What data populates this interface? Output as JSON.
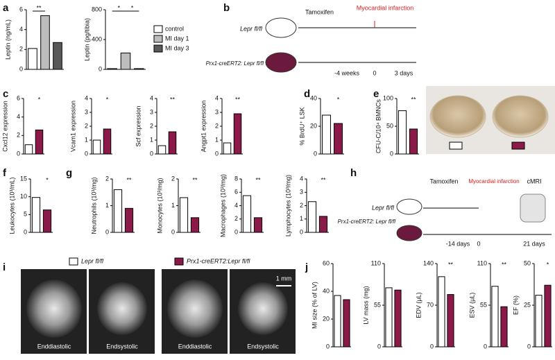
{
  "panel_letters": [
    "a",
    "b",
    "c",
    "d",
    "e",
    "f",
    "g",
    "h",
    "i",
    "j"
  ],
  "chart_data": [
    {
      "type": "bar",
      "ylabel": "Leptin (ng/mL)",
      "ylim": [
        0,
        6
      ],
      "yticks": [
        0,
        2,
        4,
        6
      ],
      "series": [
        {
          "color": "#ffffff",
          "values": [
            2.1
          ]
        },
        {
          "color": "#bdbdbd",
          "values": [
            5.4
          ]
        },
        {
          "color": "#595959",
          "values": [
            2.7
          ]
        }
      ],
      "annotations": [
        "**"
      ]
    },
    {
      "type": "bar",
      "ylabel": "Leptin (pg/tibia)",
      "ylim": [
        0,
        800
      ],
      "yticks": [
        0,
        400,
        800
      ],
      "series": [
        {
          "name": "control",
          "color": "#ffffff",
          "values": [
            10
          ]
        },
        {
          "name": "MI day 1",
          "color": "#bdbdbd",
          "values": [
            220
          ]
        },
        {
          "name": "MI day 3",
          "color": "#595959",
          "values": [
            10
          ]
        }
      ],
      "annotations": [
        "*",
        "*"
      ]
    },
    {
      "type": "bar",
      "ylabel": "Cxcl12 expression",
      "ylim": [
        0,
        6
      ],
      "yticks": [
        0,
        2,
        4,
        6
      ],
      "series": [
        {
          "color": "#ffffff",
          "values": [
            1.0
          ]
        },
        {
          "color": "#8b1a4a",
          "values": [
            2.6
          ]
        }
      ],
      "annotations": [
        "*"
      ]
    },
    {
      "type": "bar",
      "ylabel": "Vcam1 expression",
      "ylim": [
        0,
        4
      ],
      "yticks": [
        0,
        1,
        2,
        3,
        4
      ],
      "series": [
        {
          "color": "#ffffff",
          "values": [
            1.0
          ]
        },
        {
          "color": "#8b1a4a",
          "values": [
            1.8
          ]
        }
      ],
      "annotations": [
        "*"
      ]
    },
    {
      "type": "bar",
      "ylabel": "Scf expression",
      "ylim": [
        0,
        4
      ],
      "yticks": [
        0,
        1,
        2,
        3,
        4
      ],
      "series": [
        {
          "color": "#ffffff",
          "values": [
            0.6
          ]
        },
        {
          "color": "#8b1a4a",
          "values": [
            1.6
          ]
        }
      ],
      "annotations": [
        "**"
      ]
    },
    {
      "type": "bar",
      "ylabel": "Angpt1 expression",
      "ylim": [
        0,
        4
      ],
      "yticks": [
        0,
        1,
        2,
        3,
        4
      ],
      "series": [
        {
          "color": "#ffffff",
          "values": [
            0.8
          ]
        },
        {
          "color": "#8b1a4a",
          "values": [
            2.9
          ]
        }
      ],
      "annotations": [
        "**"
      ]
    },
    {
      "type": "bar",
      "ylabel": "% BrdU⁺ LSK",
      "ylim": [
        0,
        40
      ],
      "yticks": [
        0,
        20,
        40
      ],
      "series": [
        {
          "color": "#ffffff",
          "values": [
            28
          ]
        },
        {
          "color": "#8b1a4a",
          "values": [
            22
          ]
        }
      ],
      "annotations": [
        "*"
      ]
    },
    {
      "type": "bar",
      "ylabel": "CFU-C/10⁴ BMNCs",
      "ylim": [
        0,
        100
      ],
      "yticks": [
        0,
        50,
        100
      ],
      "series": [
        {
          "color": "#ffffff",
          "values": [
            78
          ]
        },
        {
          "color": "#8b1a4a",
          "values": [
            45
          ]
        }
      ],
      "annotations": [
        "**"
      ]
    },
    {
      "type": "bar",
      "ylabel": "Leukocytes (10³/mL)",
      "ylim": [
        0,
        15
      ],
      "yticks": [
        0,
        5,
        10,
        15
      ],
      "series": [
        {
          "color": "#ffffff",
          "values": [
            9.8
          ]
        },
        {
          "color": "#8b1a4a",
          "values": [
            6.3
          ]
        }
      ],
      "annotations": [
        "*"
      ]
    },
    {
      "type": "bar",
      "ylabel": "Neutrophils (10³/mg)",
      "ylim": [
        0,
        2
      ],
      "yticks": [
        0,
        1,
        2
      ],
      "series": [
        {
          "color": "#ffffff",
          "values": [
            1.6
          ]
        },
        {
          "color": "#8b1a4a",
          "values": [
            0.9
          ]
        }
      ],
      "annotations": [
        "**"
      ]
    },
    {
      "type": "bar",
      "ylabel": "Monocytes (10³/mg)",
      "ylim": [
        0,
        2
      ],
      "yticks": [
        0,
        1,
        2
      ],
      "series": [
        {
          "color": "#ffffff",
          "values": [
            1.3
          ]
        },
        {
          "color": "#8b1a4a",
          "values": [
            0.55
          ]
        }
      ],
      "annotations": [
        "**"
      ]
    },
    {
      "type": "bar",
      "ylabel": "Macrophages (10³/mg)",
      "ylim": [
        0,
        8
      ],
      "yticks": [
        0,
        2,
        4,
        6,
        8
      ],
      "series": [
        {
          "color": "#ffffff",
          "values": [
            5.5
          ]
        },
        {
          "color": "#8b1a4a",
          "values": [
            2.2
          ]
        }
      ],
      "annotations": [
        "**"
      ]
    },
    {
      "type": "bar",
      "ylabel": "Lymphocytes (10³/mg)",
      "ylim": [
        0,
        4
      ],
      "yticks": [
        0,
        1,
        2,
        3,
        4
      ],
      "series": [
        {
          "color": "#ffffff",
          "values": [
            2.3
          ]
        },
        {
          "color": "#8b1a4a",
          "values": [
            1.2
          ]
        }
      ],
      "annotations": [
        "**"
      ]
    },
    {
      "type": "bar",
      "ylabel": "MI size (% of LV)",
      "ylim": [
        0,
        60
      ],
      "yticks": [
        0,
        20,
        40,
        60
      ],
      "series": [
        {
          "color": "#ffffff",
          "values": [
            37
          ]
        },
        {
          "color": "#8b1a4a",
          "values": [
            34
          ]
        }
      ],
      "annotations": []
    },
    {
      "type": "bar",
      "ylabel": "LV mass (mg)",
      "ylim": [
        0,
        110
      ],
      "yticks": [
        0,
        55,
        110
      ],
      "series": [
        {
          "color": "#ffffff",
          "values": [
            78
          ]
        },
        {
          "color": "#8b1a4a",
          "values": [
            75
          ]
        }
      ],
      "annotations": []
    },
    {
      "type": "bar",
      "ylabel": "EDV (µL)",
      "ylim": [
        0,
        140
      ],
      "yticks": [
        0,
        70,
        140
      ],
      "series": [
        {
          "color": "#ffffff",
          "values": [
            118
          ]
        },
        {
          "color": "#8b1a4a",
          "values": [
            88
          ]
        }
      ],
      "annotations": [
        "**"
      ]
    },
    {
      "type": "bar",
      "ylabel": "ESV (µL)",
      "ylim": [
        0,
        110
      ],
      "yticks": [
        0,
        55,
        110
      ],
      "series": [
        {
          "color": "#ffffff",
          "values": [
            80
          ]
        },
        {
          "color": "#8b1a4a",
          "values": [
            53
          ]
        }
      ],
      "annotations": [
        "**"
      ]
    },
    {
      "type": "bar",
      "ylabel": "EF (%)",
      "ylim": [
        0,
        50
      ],
      "yticks": [
        0,
        25,
        50
      ],
      "series": [
        {
          "color": "#ffffff",
          "values": [
            31
          ]
        },
        {
          "color": "#8b1a4a",
          "values": [
            37
          ]
        }
      ],
      "annotations": [
        "*"
      ]
    }
  ],
  "scheme_b": {
    "treatment": "Tamoxifen",
    "event": "Myocardial infarction",
    "groups": [
      "Lepr fl/fl",
      "Prx1-creERT2: Lepr fl/fl"
    ],
    "timeline": [
      "-4 weeks",
      "0",
      "3 days"
    ]
  },
  "scheme_h": {
    "treatment": "Tamoxifen",
    "event": "Myocardial infarction",
    "readout": "cMRI",
    "groups": [
      "Lepr fl/fl",
      "Prx1-creERT2: Lepr fl/fl"
    ],
    "timeline": [
      "-14 days",
      "0",
      "21 days"
    ]
  },
  "panel_i": {
    "legend": [
      "Lepr fl/fl",
      "Prx1-creERT2:Lepr fl/fl"
    ],
    "scale_bar": "1 mm",
    "phases": [
      "Enddiastolic",
      "Endsystolic",
      "Enddiastolic",
      "Endsystolic"
    ]
  }
}
